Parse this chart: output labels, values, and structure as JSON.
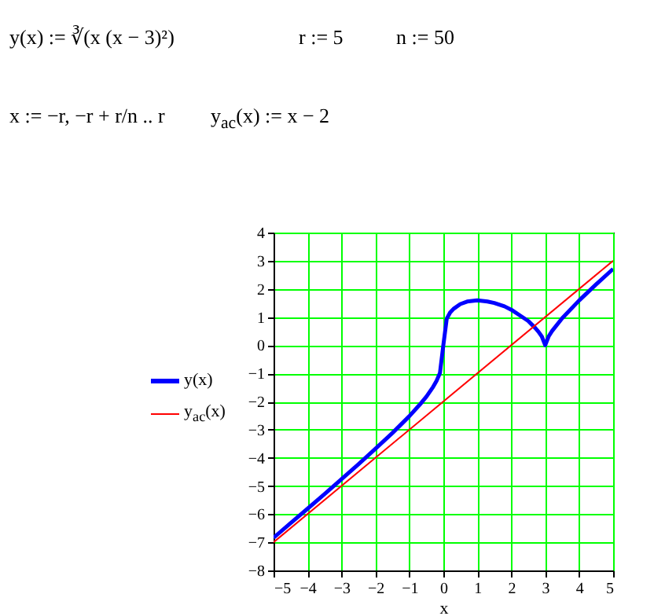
{
  "chart_data": {
    "type": "line",
    "xlabel": "x",
    "annotations": [
      "y(x) := ∛(x (x − 3)²)",
      "r := 5",
      "n := 50",
      "x := −r, −r + r/n .. r",
      "y$_{ac}$(x) := x − 2"
    ],
    "series": [
      {
        "name": "y(x)",
        "color": "#0000ff",
        "x": [
          -5,
          -4.5,
          -4,
          -3.5,
          -3,
          -2.5,
          -2,
          -1.5,
          -1,
          -0.7,
          -0.5,
          -0.3,
          -0.2,
          -0.1,
          0,
          0.1,
          0.2,
          0.3,
          0.5,
          0.7,
          1,
          1.3,
          1.5,
          1.8,
          2,
          2.3,
          2.5,
          2.7,
          2.8,
          2.9,
          3,
          3.1,
          3.2,
          3.5,
          4,
          4.5,
          5
        ],
        "values": [
          -6.84,
          -6.32,
          -5.81,
          -5.29,
          -4.76,
          -4.23,
          -3.68,
          -3.12,
          -2.52,
          -2.12,
          -1.83,
          -1.48,
          -1.27,
          -0.99,
          0,
          0.94,
          1.16,
          1.29,
          1.46,
          1.55,
          1.59,
          1.55,
          1.5,
          1.38,
          1.26,
          1.02,
          0.86,
          0.62,
          0.48,
          0.31,
          0,
          0.31,
          0.5,
          0.96,
          1.59,
          2.16,
          2.71
        ]
      },
      {
        "name": "y$_{ac}$(x)",
        "color": "#ff0000",
        "x": [
          -5,
          5
        ],
        "values": [
          -7,
          3
        ]
      }
    ],
    "xlim": [
      -5,
      5
    ],
    "xticks": [
      -5,
      -4,
      -3,
      -2,
      -1,
      0,
      1,
      2,
      3,
      4,
      5
    ],
    "ylim": [
      -8,
      4
    ],
    "yticks": [
      -8,
      -7,
      -6,
      -5,
      -4,
      -3,
      -2,
      -1,
      0,
      1,
      2,
      3,
      4
    ],
    "grid": true,
    "legend": "left"
  }
}
